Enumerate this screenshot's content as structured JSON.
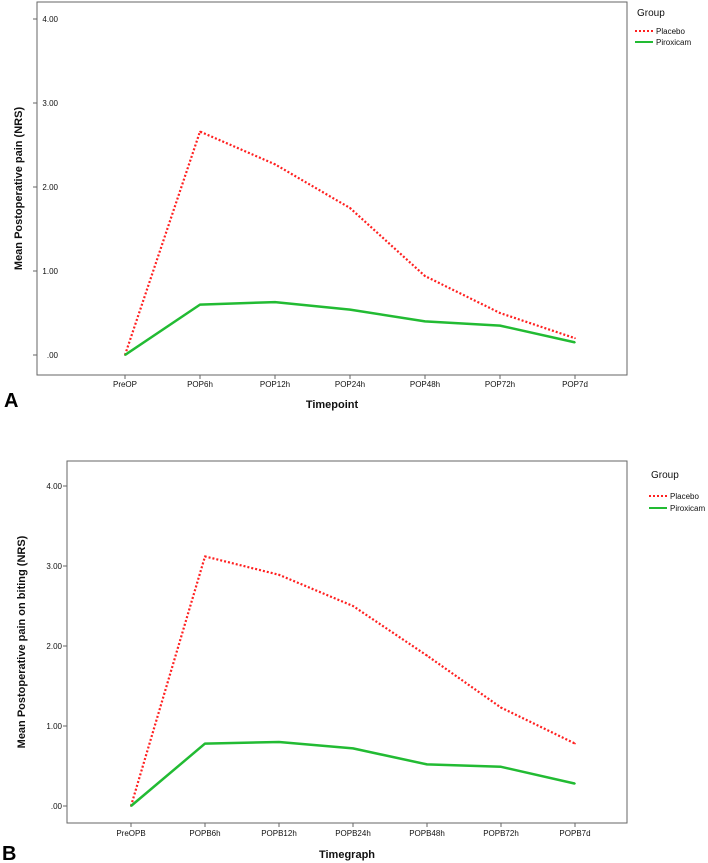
{
  "chart_data": [
    {
      "type": "line",
      "panel_label": "A",
      "categories": [
        "PreOP",
        "POP6h",
        "POP12h",
        "POP24h",
        "POP48h",
        "POP72h",
        "POP7d"
      ],
      "series": [
        {
          "name": "Placebo",
          "values": [
            0.0,
            2.66,
            2.27,
            1.75,
            0.94,
            0.5,
            0.2
          ],
          "color": "#ff2020",
          "style": "dotted"
        },
        {
          "name": "Piroxicam",
          "values": [
            0.0,
            0.6,
            0.63,
            0.54,
            0.4,
            0.35,
            0.15
          ],
          "color": "#22bb33",
          "style": "solid"
        }
      ],
      "xlabel": "Timepoint",
      "ylabel": "Mean Postoperative pain (NRS)",
      "ylim": [
        0,
        4
      ],
      "yticks": [
        ".00",
        "1.00",
        "2.00",
        "3.00",
        "4.00"
      ],
      "legend_title": "Group",
      "legend_position": "top-right"
    },
    {
      "type": "line",
      "panel_label": "B",
      "categories": [
        "PreOPB",
        "POPB6h",
        "POPB12h",
        "POPB24h",
        "POPB48h",
        "POPB72h",
        "POPB7d"
      ],
      "series": [
        {
          "name": "Placebo",
          "values": [
            0.0,
            3.12,
            2.89,
            2.5,
            1.88,
            1.23,
            0.78
          ],
          "color": "#ff2020",
          "style": "dotted"
        },
        {
          "name": "Piroxicam",
          "values": [
            0.0,
            0.78,
            0.8,
            0.72,
            0.52,
            0.49,
            0.28
          ],
          "color": "#22bb33",
          "style": "solid"
        }
      ],
      "xlabel": "Timegraph",
      "ylabel": "Mean Postoperative pain on biting (NRS)",
      "ylim": [
        0,
        4
      ],
      "yticks": [
        ".00",
        "1.00",
        "2.00",
        "3.00",
        "4.00"
      ],
      "legend_title": "Group",
      "legend_position": "top-right"
    }
  ]
}
